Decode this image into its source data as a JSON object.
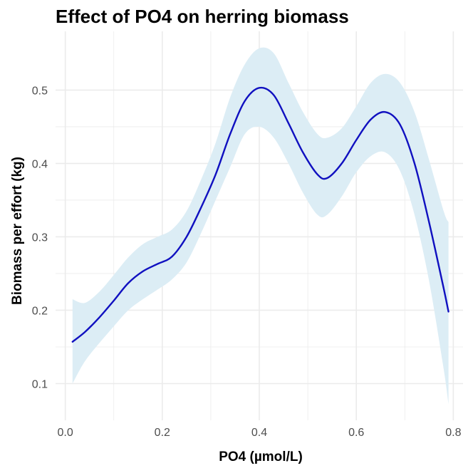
{
  "chart_data": {
    "type": "line",
    "title": "Effect of PO4 on herring biomass",
    "xlabel": "PO4 (µmol/L)",
    "ylabel": "Biomass per effort (kg)",
    "xlim": [
      -0.02,
      0.82
    ],
    "ylim": [
      0.05,
      0.58
    ],
    "x_ticks": [
      0.0,
      0.2,
      0.4,
      0.6,
      0.8
    ],
    "x_tick_labels": [
      "0.0",
      "0.2",
      "0.4",
      "0.6",
      "0.8"
    ],
    "y_ticks": [
      0.1,
      0.2,
      0.3,
      0.4,
      0.5
    ],
    "y_tick_labels": [
      "0.1",
      "0.2",
      "0.3",
      "0.4",
      "0.5"
    ],
    "grid": true,
    "line_color": "#1010c0",
    "band_color": "#dcedf5",
    "series": [
      {
        "x": [
          0.015,
          0.04,
          0.07,
          0.1,
          0.13,
          0.16,
          0.19,
          0.22,
          0.25,
          0.28,
          0.31,
          0.34,
          0.37,
          0.4,
          0.43,
          0.46,
          0.49,
          0.52,
          0.54,
          0.57,
          0.6,
          0.63,
          0.66,
          0.69,
          0.72,
          0.75,
          0.78,
          0.79
        ],
        "y": [
          0.157,
          0.17,
          0.19,
          0.213,
          0.237,
          0.253,
          0.263,
          0.273,
          0.3,
          0.34,
          0.385,
          0.44,
          0.485,
          0.503,
          0.493,
          0.455,
          0.415,
          0.385,
          0.38,
          0.4,
          0.432,
          0.46,
          0.47,
          0.453,
          0.4,
          0.32,
          0.23,
          0.198
        ],
        "lower": [
          0.1,
          0.13,
          0.155,
          0.178,
          0.2,
          0.215,
          0.228,
          0.242,
          0.265,
          0.305,
          0.35,
          0.395,
          0.44,
          0.45,
          0.435,
          0.4,
          0.36,
          0.33,
          0.33,
          0.355,
          0.388,
          0.41,
          0.415,
          0.39,
          0.33,
          0.24,
          0.12,
          0.072
        ],
        "upper": [
          0.215,
          0.21,
          0.225,
          0.248,
          0.272,
          0.29,
          0.3,
          0.31,
          0.335,
          0.378,
          0.428,
          0.49,
          0.535,
          0.557,
          0.55,
          0.51,
          0.47,
          0.44,
          0.435,
          0.448,
          0.478,
          0.51,
          0.522,
          0.51,
          0.47,
          0.405,
          0.335,
          0.32
        ]
      }
    ]
  }
}
